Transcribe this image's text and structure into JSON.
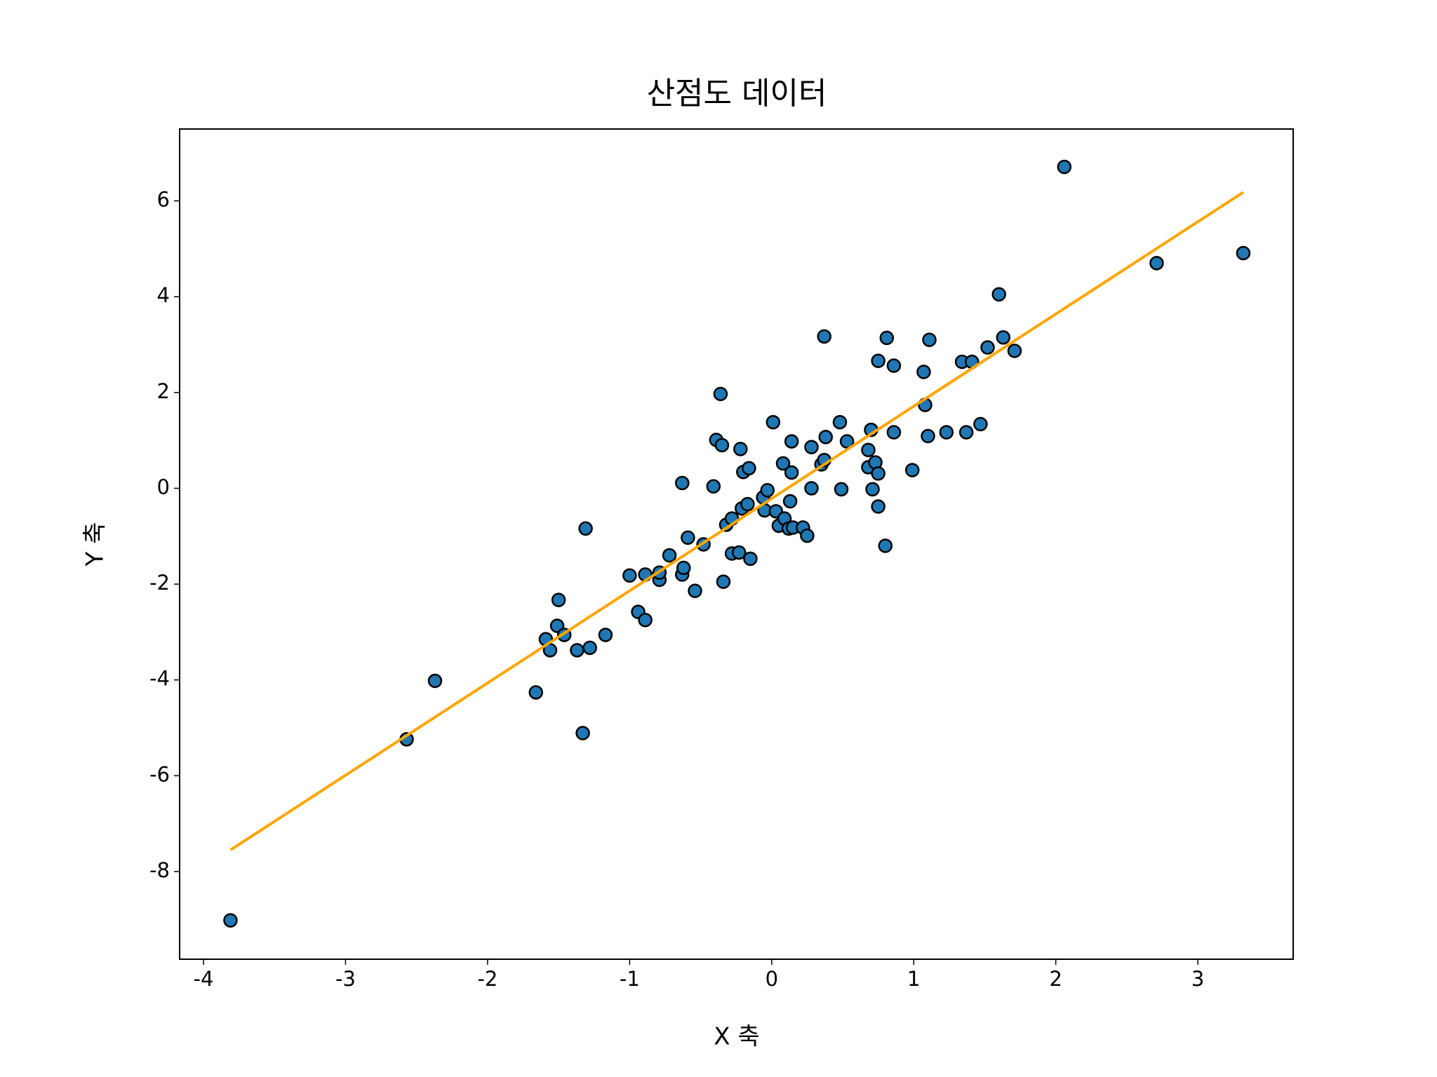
{
  "chart_data": {
    "type": "scatter",
    "title": "산점도 데이터",
    "x_label": "X 축",
    "y_label": "Y 축",
    "xlim": [
      -4.168,
      3.671
    ],
    "ylim": [
      -9.83,
      7.5
    ],
    "xticks": [
      -4,
      -3,
      -2,
      -1,
      0,
      1,
      2,
      3
    ],
    "yticks": [
      -8,
      -6,
      -4,
      -2,
      0,
      2,
      4,
      6
    ],
    "points": {
      "color": "#1f77b4",
      "edge_color": "#000000",
      "x": [
        -3.81,
        -2.57,
        -2.37,
        -1.66,
        -1.33,
        -1.31,
        -1.5,
        -1.51,
        -1.59,
        -1.56,
        -1.46,
        -1.37,
        -1.28,
        -1.17,
        -1.0,
        -0.94,
        -0.89,
        -0.89,
        -0.79,
        -0.79,
        -0.72,
        -0.63,
        -0.63,
        -0.62,
        -0.59,
        -0.54,
        -0.48,
        -0.41,
        -0.39,
        -0.36,
        -0.35,
        -0.34,
        -0.32,
        -0.28,
        -0.28,
        -0.23,
        -0.22,
        -0.2,
        -0.21,
        -0.16,
        -0.15,
        -0.17,
        -0.06,
        -0.03,
        -0.05,
        0.01,
        0.03,
        0.05,
        0.08,
        0.09,
        0.12,
        0.13,
        0.14,
        0.14,
        0.15,
        0.22,
        0.25,
        0.28,
        0.28,
        0.35,
        0.37,
        0.38,
        0.37,
        0.48,
        0.49,
        0.53,
        0.68,
        0.7,
        0.68,
        0.71,
        0.73,
        0.75,
        0.75,
        0.75,
        0.8,
        0.81,
        0.86,
        0.86,
        0.99,
        1.07,
        1.08,
        1.1,
        1.11,
        1.23,
        1.34,
        1.37,
        1.41,
        1.47,
        1.52,
        1.6,
        1.63,
        1.71,
        2.06,
        2.71,
        3.32
      ],
      "y": [
        -9.02,
        -5.24,
        -4.02,
        -4.26,
        -5.11,
        -0.84,
        -2.33,
        -2.87,
        -3.15,
        -3.38,
        -3.06,
        -3.38,
        -3.33,
        -3.06,
        -1.82,
        -2.58,
        -2.75,
        -1.8,
        -1.91,
        -1.76,
        -1.4,
        0.11,
        -1.8,
        -1.66,
        -1.03,
        -2.14,
        -1.17,
        0.04,
        1.01,
        1.97,
        0.9,
        -1.95,
        -0.76,
        -0.63,
        -1.36,
        -1.34,
        0.82,
        0.34,
        -0.42,
        0.42,
        -1.47,
        -0.33,
        -0.19,
        -0.04,
        -0.46,
        1.38,
        -0.48,
        -0.78,
        0.52,
        -0.63,
        -0.84,
        -0.27,
        0.98,
        0.33,
        -0.82,
        -0.82,
        -0.99,
        0.0,
        0.86,
        0.5,
        3.17,
        1.07,
        0.59,
        1.38,
        -0.02,
        0.98,
        0.8,
        1.22,
        0.44,
        -0.02,
        0.54,
        0.31,
        -0.38,
        2.66,
        -1.2,
        3.14,
        2.56,
        1.17,
        0.38,
        2.43,
        1.74,
        1.09,
        3.1,
        1.17,
        2.64,
        1.17,
        2.64,
        1.34,
        2.94,
        4.05,
        3.15,
        2.87,
        6.71,
        4.7,
        4.91
      ]
    },
    "fit_line": {
      "type": "line",
      "color": "#ffa500",
      "x": [
        -3.81,
        3.32
      ],
      "y": [
        -7.55,
        6.18
      ]
    }
  }
}
